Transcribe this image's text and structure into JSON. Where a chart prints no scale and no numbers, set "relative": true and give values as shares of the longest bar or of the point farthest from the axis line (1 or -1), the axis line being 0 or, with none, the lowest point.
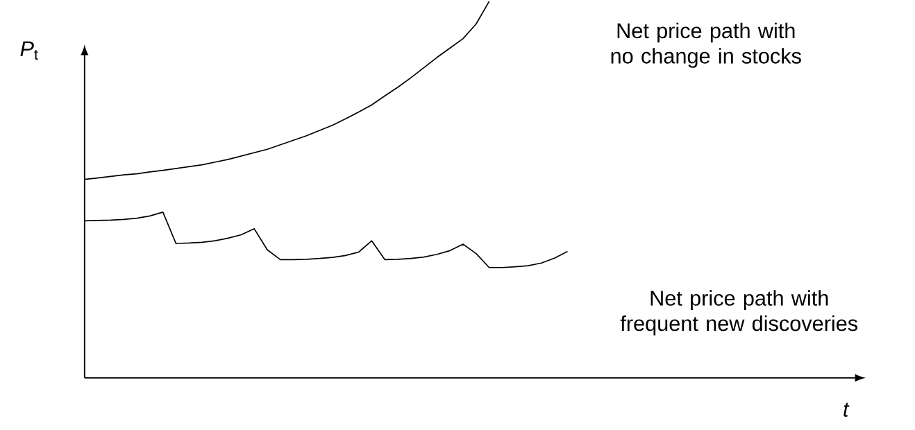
{
  "chart_data": {
    "type": "line",
    "relative": true,
    "annotations": [
      "t"
    ],
    "ylabel": "*P*$_{t}$",
    "categories": [
      null,
      null,
      null,
      null,
      null,
      null,
      null,
      null,
      null,
      null,
      null,
      null,
      null,
      null,
      null,
      null,
      null,
      null,
      null,
      null,
      null,
      null,
      null,
      null,
      null,
      null,
      null,
      null,
      null,
      null,
      null,
      null,
      null,
      null,
      null,
      null,
      null,
      null
    ],
    "series": [
      {
        "name": "Net price path with no change in stocks",
        "color": "#000000",
        "values": [
          0.527,
          0.531,
          0.535,
          0.539,
          0.542,
          0.547,
          0.551,
          0.556,
          0.561,
          0.566,
          0.573,
          0.58,
          0.589,
          0.598,
          0.607,
          0.619,
          0.631,
          0.643,
          0.657,
          0.671,
          0.688,
          0.706,
          0.725,
          0.749,
          0.772,
          0.797,
          0.824,
          0.851,
          0.876,
          0.901,
          0.94,
          1,
          null,
          null,
          null,
          null,
          null,
          null
        ]
      },
      {
        "name": "Net price path with frequent new discoveries",
        "color": "#000000",
        "values": [
          0.417,
          0.418,
          0.419,
          0.421,
          0.424,
          0.43,
          0.44,
          0.357,
          0.358,
          0.36,
          0.364,
          0.371,
          0.38,
          0.396,
          0.34,
          0.314,
          0.314,
          0.315,
          0.317,
          0.32,
          0.325,
          0.334,
          0.364,
          0.314,
          0.315,
          0.317,
          0.321,
          0.328,
          0.338,
          0.355,
          0.33,
          0.293,
          0.293,
          0.295,
          0.298,
          0.305,
          0.318,
          0.336
        ]
      }
    ]
  }
}
